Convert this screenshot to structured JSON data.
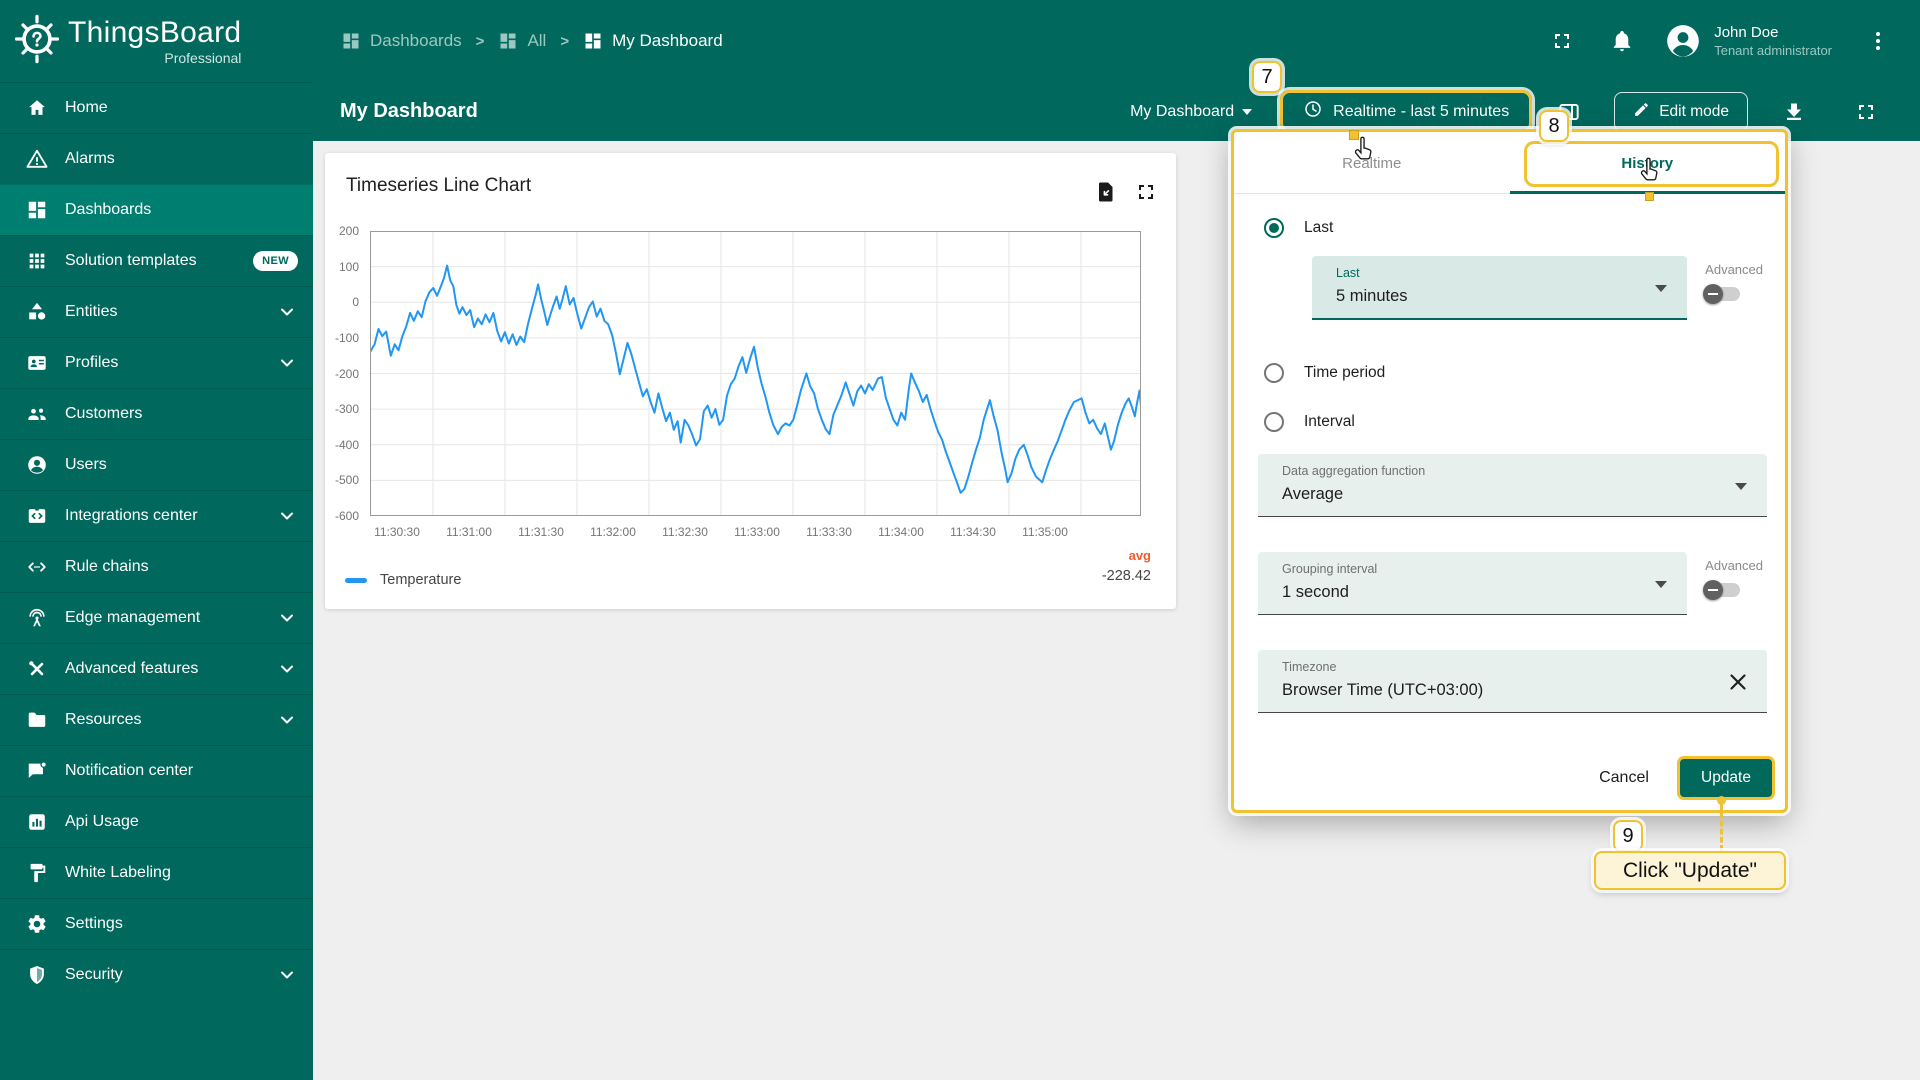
{
  "colors": {
    "teal_primary": "#00685d",
    "teal_selected": "#007f70",
    "accent_teal": "#00695c",
    "annotation_yellow": "#f1c22f",
    "annotation_box_bg": "#fdf3d7",
    "line_blue": "#2196f3",
    "avg_orange": "#f25b2b",
    "canvas_gray": "#efefef"
  },
  "brand": {
    "name": "ThingsBoard",
    "edition": "Professional"
  },
  "sidebar": {
    "items": [
      {
        "label": "Home",
        "icon": "home-icon"
      },
      {
        "label": "Alarms",
        "icon": "alarm-icon"
      },
      {
        "label": "Dashboards",
        "icon": "dashboards-icon",
        "selected": true
      },
      {
        "label": "Solution templates",
        "icon": "apps-grid-icon",
        "badge": "NEW"
      },
      {
        "label": "Entities",
        "icon": "entities-icon",
        "expandable": true
      },
      {
        "label": "Profiles",
        "icon": "profiles-icon",
        "expandable": true
      },
      {
        "label": "Customers",
        "icon": "customers-icon"
      },
      {
        "label": "Users",
        "icon": "users-icon"
      },
      {
        "label": "Integrations center",
        "icon": "integrations-icon",
        "expandable": true
      },
      {
        "label": "Rule chains",
        "icon": "rule-chains-icon"
      },
      {
        "label": "Edge management",
        "icon": "edge-icon",
        "expandable": true
      },
      {
        "label": "Advanced features",
        "icon": "tools-icon",
        "expandable": true
      },
      {
        "label": "Resources",
        "icon": "folder-icon",
        "expandable": true
      },
      {
        "label": "Notification center",
        "icon": "notification-icon"
      },
      {
        "label": "Api Usage",
        "icon": "api-usage-icon"
      },
      {
        "label": "White Labeling",
        "icon": "paint-icon"
      },
      {
        "label": "Settings",
        "icon": "gear-icon"
      },
      {
        "label": "Security",
        "icon": "shield-icon",
        "expandable": true
      }
    ]
  },
  "header": {
    "breadcrumb": [
      {
        "label": "Dashboards",
        "icon": "dashboard-icon"
      },
      {
        "label": "All",
        "icon": "dashboard-icon"
      },
      {
        "label": "My Dashboard",
        "icon": "dashboard-icon",
        "current": true
      }
    ],
    "user": {
      "name": "John Doe",
      "role": "Tenant administrator"
    }
  },
  "toolbar": {
    "page_title": "My Dashboard",
    "dashboard_select_value": "My Dashboard",
    "timewindow_button": "Realtime - last 5 minutes",
    "edit_mode_button": "Edit mode"
  },
  "widget": {
    "title": "Timeseries Line Chart"
  },
  "chart_data": {
    "type": "line",
    "title": "Timeseries Line Chart",
    "xlabel": "",
    "ylabel": "",
    "ylim": [
      -600,
      200
    ],
    "grid": true,
    "legend_position": "bottom",
    "x_ticks": [
      "11:30:30",
      "11:31:00",
      "11:31:30",
      "11:32:00",
      "11:32:30",
      "11:33:00",
      "11:33:30",
      "11:34:00",
      "11:34:30",
      "11:35:00"
    ],
    "y_ticks": [
      200,
      100,
      0,
      -100,
      -200,
      -300,
      -400,
      -500,
      -600
    ],
    "aggregation": {
      "label": "avg",
      "value": "-228.42"
    },
    "series": [
      {
        "name": "Temperature",
        "color": "#2196f3",
        "points": [
          [
            0,
            -140
          ],
          [
            0.6,
            -118
          ],
          [
            1.1,
            -75
          ],
          [
            1.6,
            -95
          ],
          [
            2.1,
            -82
          ],
          [
            2.7,
            -150
          ],
          [
            3.2,
            -118
          ],
          [
            3.7,
            -135
          ],
          [
            4.2,
            -95
          ],
          [
            4.7,
            -68
          ],
          [
            5.2,
            -30
          ],
          [
            5.7,
            -52
          ],
          [
            6.2,
            -25
          ],
          [
            6.7,
            -42
          ],
          [
            7.2,
            3
          ],
          [
            7.7,
            28
          ],
          [
            8.2,
            40
          ],
          [
            8.7,
            18
          ],
          [
            9.2,
            45
          ],
          [
            9.6,
            68
          ],
          [
            10,
            103
          ],
          [
            10.4,
            62
          ],
          [
            10.8,
            45
          ],
          [
            11.2,
            -8
          ],
          [
            11.6,
            -32
          ],
          [
            12,
            -14
          ],
          [
            12.5,
            -36
          ],
          [
            13,
            -22
          ],
          [
            13.5,
            -70
          ],
          [
            14,
            -46
          ],
          [
            14.5,
            -62
          ],
          [
            15,
            -34
          ],
          [
            15.5,
            -56
          ],
          [
            16,
            -30
          ],
          [
            16.5,
            -80
          ],
          [
            17,
            -110
          ],
          [
            17.5,
            -84
          ],
          [
            18,
            -116
          ],
          [
            18.5,
            -90
          ],
          [
            19,
            -120
          ],
          [
            19.5,
            -96
          ],
          [
            20,
            -112
          ],
          [
            20.5,
            -60
          ],
          [
            21,
            -18
          ],
          [
            21.5,
            22
          ],
          [
            21.8,
            50
          ],
          [
            22.2,
            8
          ],
          [
            22.6,
            -26
          ],
          [
            23,
            -64
          ],
          [
            23.4,
            -34
          ],
          [
            23.8,
            -8
          ],
          [
            24.2,
            16
          ],
          [
            24.6,
            -18
          ],
          [
            25,
            12
          ],
          [
            25.4,
            45
          ],
          [
            25.9,
            -6
          ],
          [
            26.4,
            12
          ],
          [
            26.9,
            -34
          ],
          [
            27.4,
            -74
          ],
          [
            27.9,
            -44
          ],
          [
            28.4,
            -14
          ],
          [
            28.9,
            2
          ],
          [
            29.4,
            -40
          ],
          [
            29.9,
            -18
          ],
          [
            30.4,
            -52
          ],
          [
            30.9,
            -62
          ],
          [
            31.4,
            -92
          ],
          [
            31.9,
            -142
          ],
          [
            32.4,
            -202
          ],
          [
            32.9,
            -158
          ],
          [
            33.4,
            -114
          ],
          [
            33.9,
            -146
          ],
          [
            34.4,
            -186
          ],
          [
            34.9,
            -226
          ],
          [
            35.4,
            -264
          ],
          [
            35.9,
            -244
          ],
          [
            36.4,
            -280
          ],
          [
            36.9,
            -310
          ],
          [
            37.4,
            -256
          ],
          [
            37.9,
            -296
          ],
          [
            38.4,
            -334
          ],
          [
            38.9,
            -310
          ],
          [
            39.4,
            -358
          ],
          [
            39.9,
            -334
          ],
          [
            40.3,
            -394
          ],
          [
            40.8,
            -330
          ],
          [
            41.3,
            -346
          ],
          [
            41.8,
            -372
          ],
          [
            42.3,
            -402
          ],
          [
            42.8,
            -384
          ],
          [
            43.3,
            -306
          ],
          [
            43.8,
            -290
          ],
          [
            44.3,
            -324
          ],
          [
            44.8,
            -300
          ],
          [
            45.3,
            -344
          ],
          [
            45.8,
            -330
          ],
          [
            46.3,
            -262
          ],
          [
            46.8,
            -230
          ],
          [
            47.3,
            -214
          ],
          [
            47.8,
            -180
          ],
          [
            48.3,
            -154
          ],
          [
            48.8,
            -198
          ],
          [
            49.3,
            -158
          ],
          [
            49.8,
            -125
          ],
          [
            50.3,
            -184
          ],
          [
            50.8,
            -230
          ],
          [
            51.3,
            -266
          ],
          [
            51.8,
            -310
          ],
          [
            52.3,
            -344
          ],
          [
            52.9,
            -370
          ],
          [
            53.4,
            -350
          ],
          [
            53.9,
            -340
          ],
          [
            54.4,
            -346
          ],
          [
            54.9,
            -330
          ],
          [
            55.4,
            -290
          ],
          [
            55.9,
            -246
          ],
          [
            56.6,
            -200
          ],
          [
            57.1,
            -236
          ],
          [
            57.6,
            -256
          ],
          [
            58.1,
            -300
          ],
          [
            58.6,
            -330
          ],
          [
            59.1,
            -356
          ],
          [
            59.6,
            -370
          ],
          [
            60.1,
            -316
          ],
          [
            60.6,
            -290
          ],
          [
            61.1,
            -264
          ],
          [
            61.7,
            -225
          ],
          [
            62.2,
            -258
          ],
          [
            62.7,
            -290
          ],
          [
            63.2,
            -250
          ],
          [
            63.7,
            -234
          ],
          [
            64.2,
            -256
          ],
          [
            64.7,
            -230
          ],
          [
            65.2,
            -246
          ],
          [
            65.9,
            -214
          ],
          [
            66.4,
            -210
          ],
          [
            66.9,
            -268
          ],
          [
            67.4,
            -300
          ],
          [
            67.9,
            -330
          ],
          [
            68.4,
            -346
          ],
          [
            68.9,
            -310
          ],
          [
            69.4,
            -330
          ],
          [
            69.9,
            -242
          ],
          [
            70.2,
            -200
          ],
          [
            70.7,
            -226
          ],
          [
            71.2,
            -250
          ],
          [
            71.7,
            -280
          ],
          [
            72.2,
            -260
          ],
          [
            72.7,
            -300
          ],
          [
            73.2,
            -334
          ],
          [
            73.7,
            -364
          ],
          [
            74.2,
            -386
          ],
          [
            74.7,
            -420
          ],
          [
            75.2,
            -450
          ],
          [
            75.7,
            -480
          ],
          [
            76.2,
            -510
          ],
          [
            76.6,
            -535
          ],
          [
            77.1,
            -524
          ],
          [
            77.6,
            -490
          ],
          [
            78.1,
            -450
          ],
          [
            78.6,
            -414
          ],
          [
            79.1,
            -380
          ],
          [
            79.6,
            -330
          ],
          [
            80.4,
            -275
          ],
          [
            80.9,
            -320
          ],
          [
            81.4,
            -360
          ],
          [
            81.9,
            -420
          ],
          [
            82.4,
            -470
          ],
          [
            82.7,
            -505
          ],
          [
            83.2,
            -480
          ],
          [
            83.7,
            -440
          ],
          [
            84.2,
            -414
          ],
          [
            84.8,
            -400
          ],
          [
            85.3,
            -430
          ],
          [
            85.8,
            -464
          ],
          [
            86.4,
            -490
          ],
          [
            87.2,
            -505
          ],
          [
            87.7,
            -470
          ],
          [
            88.2,
            -440
          ],
          [
            88.7,
            -414
          ],
          [
            89.2,
            -390
          ],
          [
            89.7,
            -360
          ],
          [
            90.2,
            -330
          ],
          [
            90.7,
            -304
          ],
          [
            91.3,
            -280
          ],
          [
            92.3,
            -270
          ],
          [
            92.8,
            -310
          ],
          [
            93.3,
            -340
          ],
          [
            93.8,
            -330
          ],
          [
            94.3,
            -354
          ],
          [
            94.8,
            -370
          ],
          [
            95.3,
            -340
          ],
          [
            95.8,
            -386
          ],
          [
            96.1,
            -414
          ],
          [
            96.5,
            -390
          ],
          [
            97,
            -344
          ],
          [
            97.5,
            -310
          ],
          [
            98,
            -284
          ],
          [
            98.4,
            -270
          ],
          [
            98.8,
            -292
          ],
          [
            99.2,
            -320
          ],
          [
            99.5,
            -282
          ],
          [
            99.8,
            -248
          ],
          [
            100,
            -292
          ]
        ]
      }
    ]
  },
  "dialog": {
    "tabs": [
      "Realtime",
      "History"
    ],
    "active_tab": "History",
    "options": [
      {
        "label": "Last",
        "selected": true
      },
      {
        "label": "Time period",
        "selected": false
      },
      {
        "label": "Interval",
        "selected": false
      }
    ],
    "last_field": {
      "label": "Last",
      "value": "5 minutes"
    },
    "advanced_label": "Advanced",
    "aggregation_field": {
      "label": "Data aggregation function",
      "value": "Average"
    },
    "grouping_field": {
      "label": "Grouping interval",
      "value": "1 second"
    },
    "timezone_field": {
      "label": "Timezone",
      "value": "Browser Time (UTC+03:00)"
    },
    "cancel_button": "Cancel",
    "update_button": "Update"
  },
  "annotations": {
    "step_7": "7",
    "step_8": "8",
    "step_9": "9",
    "click_update_label": "Click \"Update\""
  }
}
